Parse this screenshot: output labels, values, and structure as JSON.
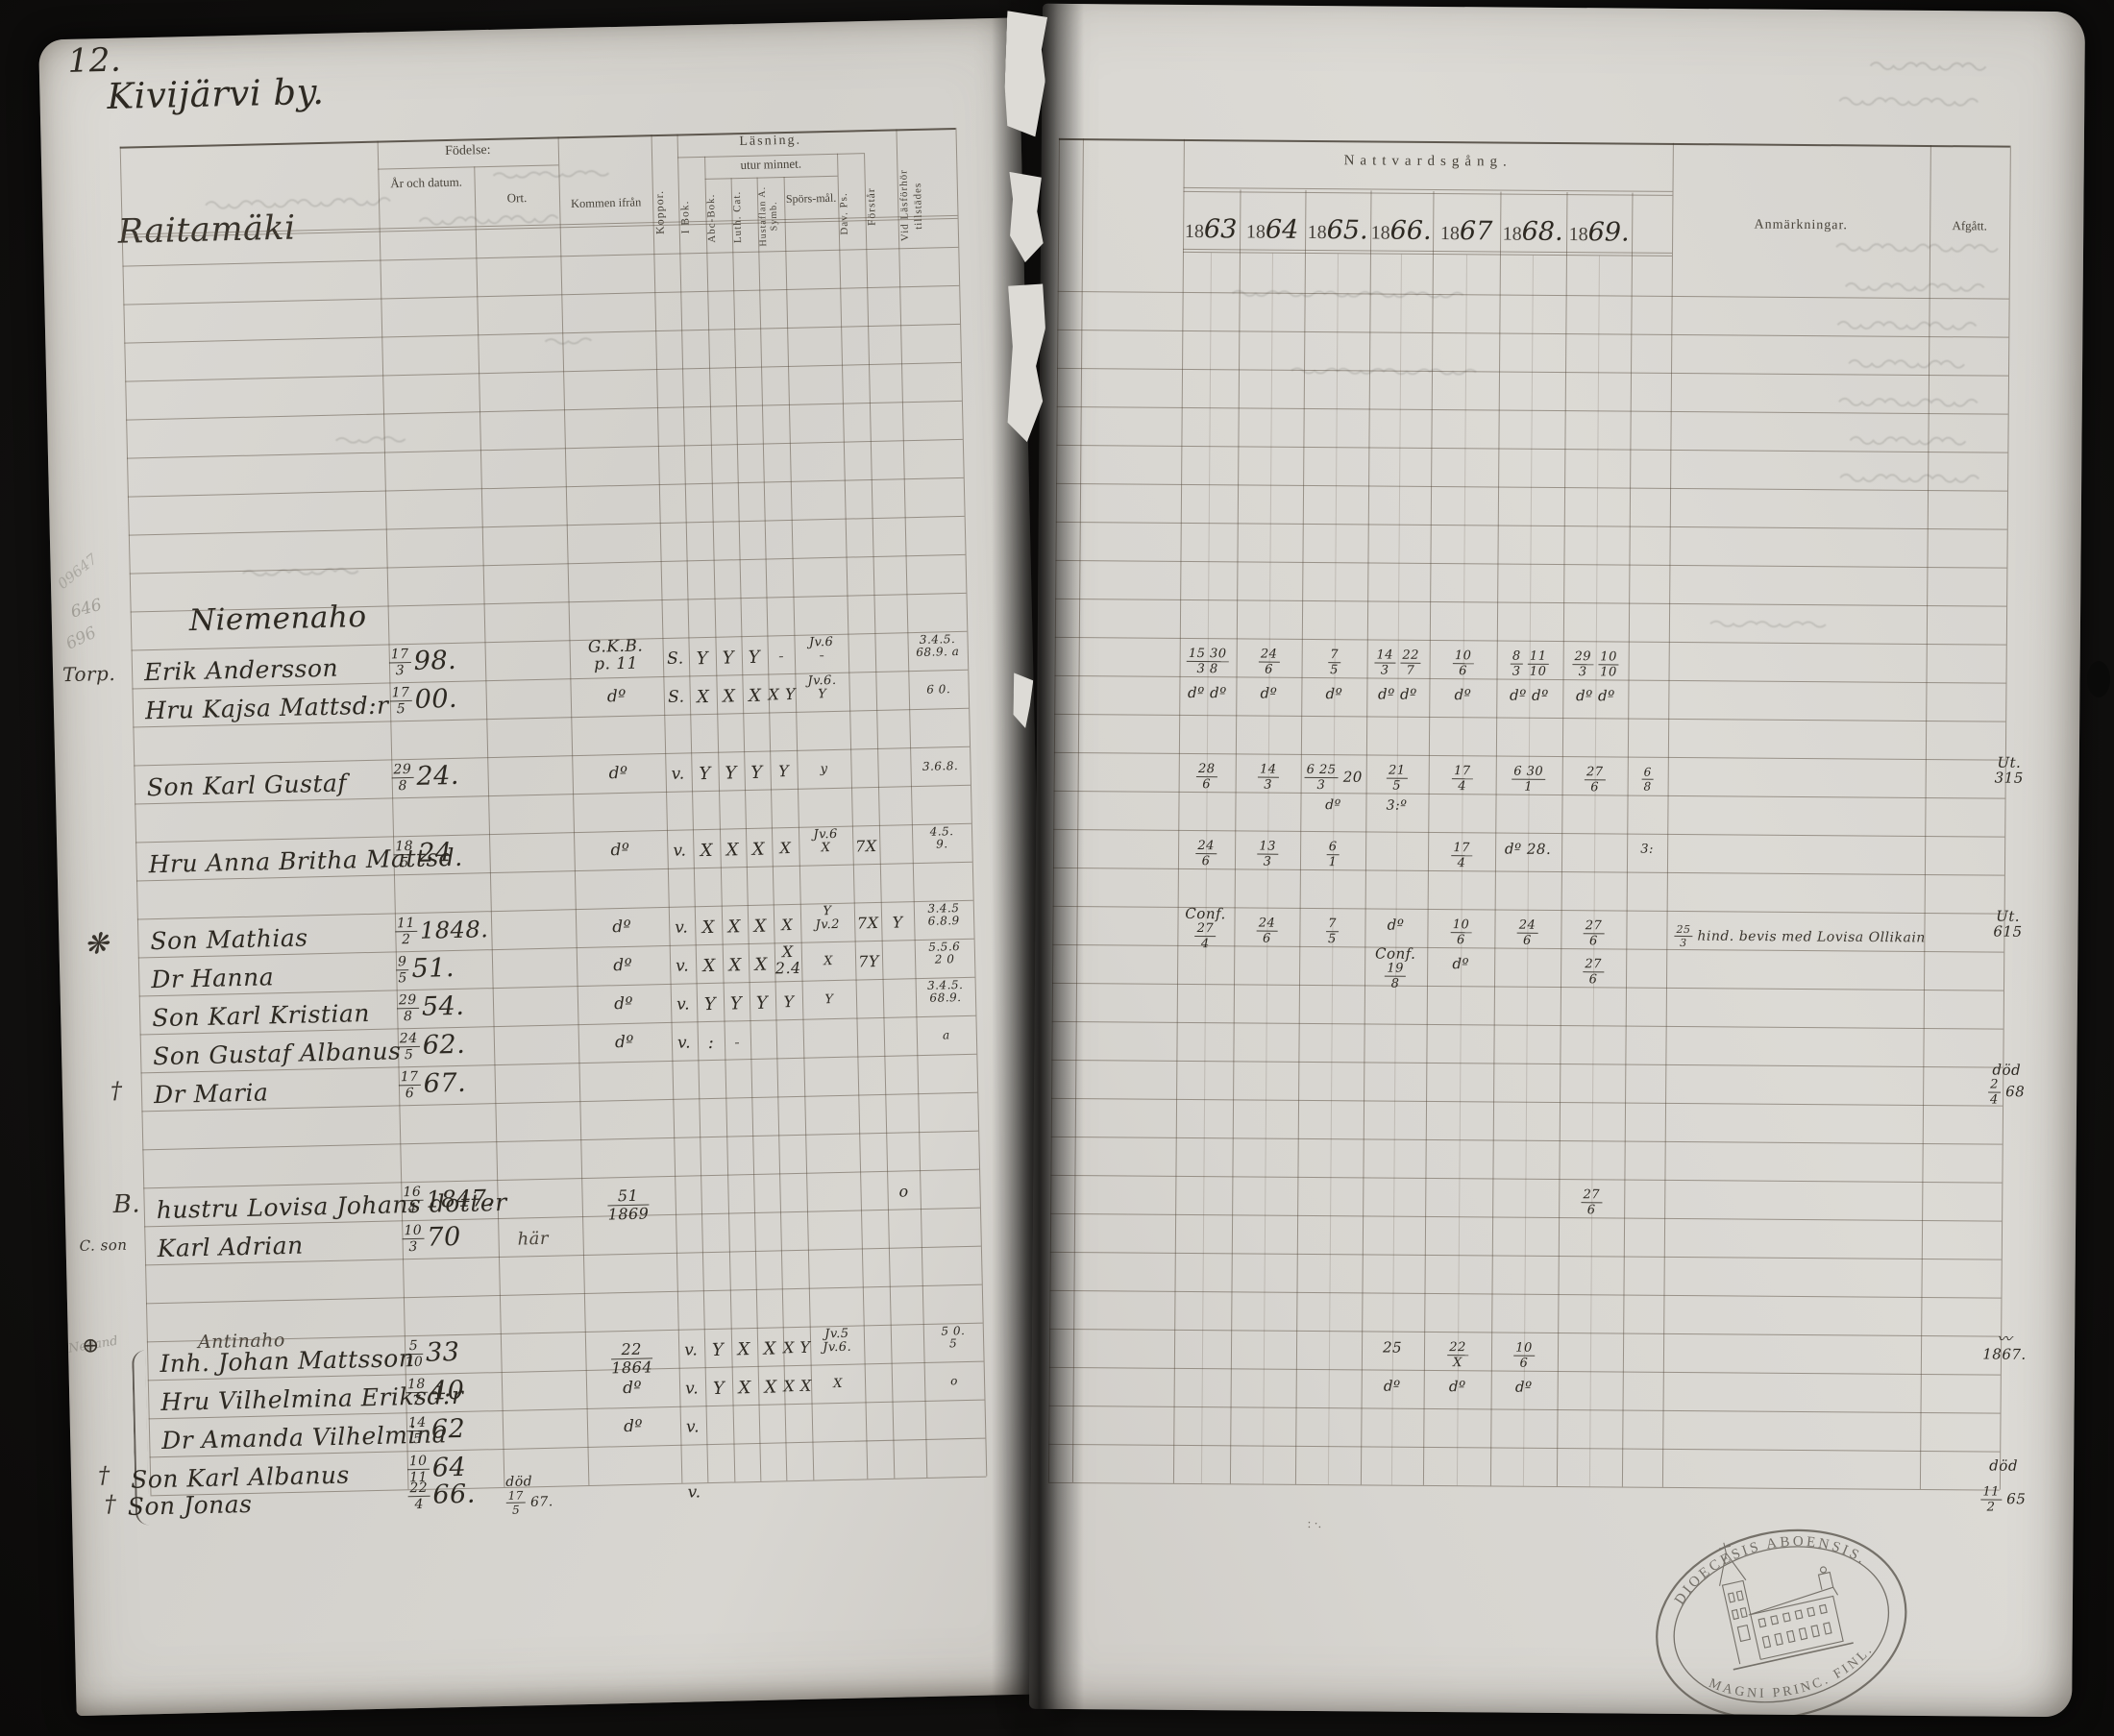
{
  "page": {
    "number": "12.",
    "village_title": "Kivijärvi by.",
    "farm_heading": "Raitamäki",
    "sections": {
      "first": "Niemenaho",
      "second": "Antinaho"
    },
    "pencil_notes": [
      "09647",
      "646",
      "696"
    ],
    "margin_pencil_note": "Nedand",
    "ink_dots": ": ·."
  },
  "left_header": {
    "fodelse": "Födelse:",
    "ar_och_datum": "År och datum.",
    "ort": "Ort.",
    "kommen_ifran": "Kommen ifrån",
    "koppor": "Koppor.",
    "lasning": "Läsning.",
    "utur_minnet": "utur minnet.",
    "i_bok": "I Bok.",
    "abc_bok": "Abc-Bok.",
    "luth_cat": "Luth. Cat.",
    "hustaflan": "Hustaflan A. Symb.",
    "sporsmal": "Spörs-mål.",
    "dav_ps": "Dav. Ps.",
    "forstar": "Förstår",
    "vid_lasforhor": "Vid Läsförhör tillstädes"
  },
  "right_header": {
    "nattvardsgang": "Nattvardsgång.",
    "year_prefix": "18",
    "years": [
      "63",
      "64",
      "65.",
      "66.",
      "67",
      "68.",
      "69."
    ],
    "anmarkningar": "Anmärkningar.",
    "afgatt": "Afgått."
  },
  "rows": [
    {
      "id": "erik",
      "margin": "Torp.",
      "name": "Erik Andersson",
      "birth": {
        "fr": "17/3",
        "yr": "98."
      },
      "kommen": "G.K.B.|p. 11",
      "koppor": "S.",
      "marks": {
        "ibok": "Y",
        "abc": "Y",
        "luth": "Y",
        "hust": "/",
        "spors": "Jv.6|/",
        "vid": "3.4.5.|68.9. a"
      },
      "comm": [
        "15_30/3_8",
        "24/6",
        "7/5",
        "14/3 22/7",
        "10/6",
        "8/3 11/10",
        "29/3 10/10"
      ]
    },
    {
      "id": "kajsa",
      "name": "Hru Kajsa Mattsd:r",
      "birth": {
        "fr": "17/5",
        "yr": "00."
      },
      "kommen": "dº",
      "koppor": "S.",
      "marks": {
        "ibok": "X",
        "abc": "X",
        "luth": "X",
        "hust": "X Y",
        "spors": "Jv.6.|Y",
        "vid": "6 0."
      },
      "comm": [
        "dº dº",
        "dº",
        "dº",
        "dº dº",
        "dº",
        "dº dº",
        "dº dº"
      ]
    },
    {
      "id": "karl-gustaf",
      "name": "Son Karl Gustaf",
      "birth": {
        "fr": "29/8",
        "yr": "24."
      },
      "kommen": "dº",
      "koppor": "v.",
      "marks": {
        "ibok": "Y",
        "abc": "Y",
        "luth": "Y",
        "hust": "Y",
        "spors": "y",
        "vid": "3.6.8."
      },
      "comm": [
        "28/6",
        "14/3",
        "6_25/3 20",
        "21/5",
        "17/4",
        "6_30/1",
        "27/6"
      ],
      "comm2": {
        "2": "dº",
        "3": "3:º"
      },
      "extra": "6/8",
      "afgatt": "Ut.|315"
    },
    {
      "id": "anna-britha",
      "name": "Hru Anna Britha Mattsd.",
      "birth": {
        "fr": "18/5",
        "yr": "24"
      },
      "kommen": "dº",
      "koppor": "v.",
      "marks": {
        "ibok": "X",
        "abc": "X",
        "luth": "X",
        "hust": "X",
        "spors": "Jv.6|X",
        "dav": "7X",
        "vid": "4.5.|9."
      },
      "comm": [
        "24/6",
        "13/3",
        "6/1",
        "",
        "17/4",
        "dº 28.",
        ""
      ],
      "extra": "3:"
    },
    {
      "id": "mathias",
      "margin": "❋",
      "name": "Son Mathias",
      "birth": {
        "fr": "11/2",
        "yr": "1848."
      },
      "kommen": "dº",
      "koppor": "v.",
      "marks": {
        "ibok": "X",
        "abc": "X",
        "luth": "X",
        "hust": "X",
        "spors": "Y|Jv.2",
        "dav": "7X",
        "forstar": "Y",
        "vid": "3.4.5|6.8.9"
      },
      "comm": [
        "Conf.|27/4",
        "24/6",
        "7/5",
        "dº",
        "10/6",
        "24/6",
        "27/6"
      ],
      "anm": "25/3 hind. bevis med Lovisa Ollikain",
      "afgatt": "Ut.|615"
    },
    {
      "id": "hanna",
      "name": "Dr Hanna",
      "birth": {
        "fr": "9/5",
        "yr": "51."
      },
      "kommen": "dº",
      "koppor": "v.",
      "marks": {
        "ibok": "X",
        "abc": "X",
        "luth": "X",
        "hust": "X|2.4",
        "spors": "X",
        "dav": "7Y",
        "vid": "5.5.6|2 0"
      },
      "comm": [
        "",
        "",
        "",
        "Conf.|19/8",
        "dº",
        "",
        "27/6"
      ]
    },
    {
      "id": "karl-kristian",
      "name": "Son Karl Kristian",
      "birth": {
        "fr": "29/8",
        "yr": "54."
      },
      "kommen": "dº",
      "koppor": "v.",
      "marks": {
        "ibok": "Y",
        "abc": "Y",
        "luth": "Y",
        "hust": "Y",
        "spors": "Y",
        "vid": "3.4.5.|68.9."
      }
    },
    {
      "id": "gustaf-albanus",
      "name": "Son Gustaf Albanus",
      "birth": {
        "fr": "24/5",
        "yr": "62."
      },
      "kommen": "dº",
      "koppor": "v.",
      "marks": {
        "ibok": ":",
        "abc": "/",
        "vid": "a"
      }
    },
    {
      "id": "maria",
      "margin": "†",
      "name": "Dr Maria",
      "birth": {
        "fr": "17/6",
        "yr": "67."
      },
      "afgatt": "död|2/4 68"
    },
    {
      "id": "lovisa",
      "margin": "B.",
      "name": "hustru Lovisa Johans dotter",
      "birth": {
        "fr": "16/4",
        "yr": "1847."
      },
      "kommen": "51/1869",
      "marks": {
        "forstar": "o"
      },
      "comm": [
        "",
        "",
        "",
        "",
        "",
        "",
        "27/6"
      ]
    },
    {
      "id": "karl-adrian",
      "margin": "C. son",
      "name": "Karl Adrian",
      "birth": {
        "fr": "10/3",
        "yr": "70"
      },
      "ort": "här"
    },
    {
      "id": "johan",
      "margin": "⊕",
      "name": "Inh. Johan Mattsson",
      "birth": {
        "fr": "5/10",
        "yr": "33"
      },
      "kommen": "22/1864",
      "koppor": "v.",
      "marks": {
        "ibok": "Y",
        "abc": "X",
        "luth": "X",
        "hust": "X Y",
        "spors": "Jv.5|Jv.6.",
        "vid": "5 0.|5"
      },
      "comm": [
        "",
        "",
        "",
        "25",
        "22/X",
        "10/6",
        ""
      ],
      "afgatt": "〰|1867."
    },
    {
      "id": "vilhelmina",
      "name": "Hru Vilhelmina Eriksd:r",
      "birth": {
        "fr": "18/7",
        "yr": "40"
      },
      "kommen": "dº",
      "koppor": "v.",
      "marks": {
        "ibok": "Y",
        "abc": "X",
        "luth": "X",
        "hust": "X X",
        "spors": "X",
        "vid": "o"
      },
      "comm": [
        "",
        "",
        "",
        "dº",
        "dº",
        "dº",
        ""
      ]
    },
    {
      "id": "amanda",
      "name": "Dr Amanda Vilhelmina",
      "birth": {
        "fr": "14/5",
        "yr": "62"
      },
      "kommen": "dº",
      "koppor": "v."
    },
    {
      "id": "karl-albanus",
      "margin": "†",
      "name": "Son Karl Albanus",
      "birth": {
        "fr": "10/11",
        "yr": "64"
      },
      "afgatt": "död"
    },
    {
      "id": "jonas",
      "margin": "†",
      "name": "Son Jonas",
      "birth": {
        "fr": "22/4",
        "yr": "66."
      },
      "ort2": "död|17/5 67.",
      "koppor": "v.",
      "afgatt": "11/2 65"
    }
  ],
  "stamp": {
    "top_text": "DIOECESIS ABOENSIS.",
    "bottom_text": "MAGNI PRINC. FINL."
  }
}
